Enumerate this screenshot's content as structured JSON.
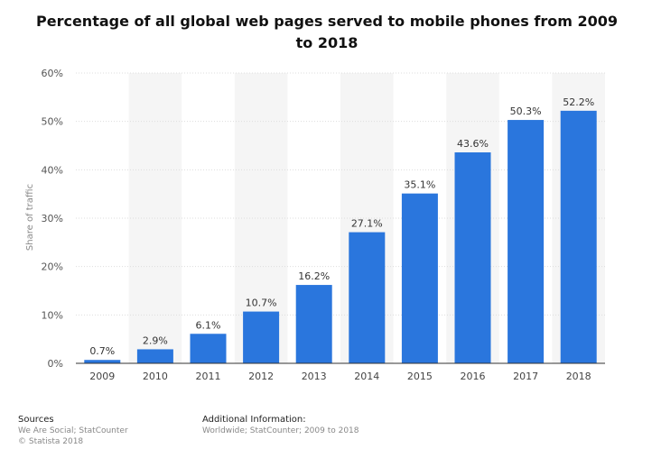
{
  "title": "Percentage of all global web pages served to mobile phones from 2009 to 2018",
  "footer": {
    "sources_label": "Sources",
    "sources_text": "We Are Social; StatCounter",
    "copyright": "© Statista 2018",
    "info_label": "Additional Information:",
    "info_text": "Worldwide; StatCounter; 2009 to 2018"
  },
  "colors": {
    "bar": "#2a76dd",
    "band": "#f5f5f5"
  },
  "chart_data": {
    "type": "bar",
    "title": "Percentage of all global web pages served to mobile phones from 2009 to 2018",
    "xlabel": "",
    "ylabel": "Share of traffic",
    "categories": [
      "2009",
      "2010",
      "2011",
      "2012",
      "2013",
      "2014",
      "2015",
      "2016",
      "2017",
      "2018"
    ],
    "values": [
      0.7,
      2.9,
      6.1,
      10.7,
      16.2,
      27.1,
      35.1,
      43.6,
      50.3,
      52.2
    ],
    "value_labels": [
      "0.7%",
      "2.9%",
      "6.1%",
      "10.7%",
      "16.2%",
      "27.1%",
      "35.1%",
      "43.6%",
      "50.3%",
      "52.2%"
    ],
    "yticks": [
      0,
      10,
      20,
      30,
      40,
      50,
      60
    ],
    "ytick_labels": [
      "0%",
      "10%",
      "20%",
      "30%",
      "40%",
      "50%",
      "60%"
    ],
    "ylim": [
      0,
      60
    ],
    "grid": true,
    "legend": "none"
  }
}
